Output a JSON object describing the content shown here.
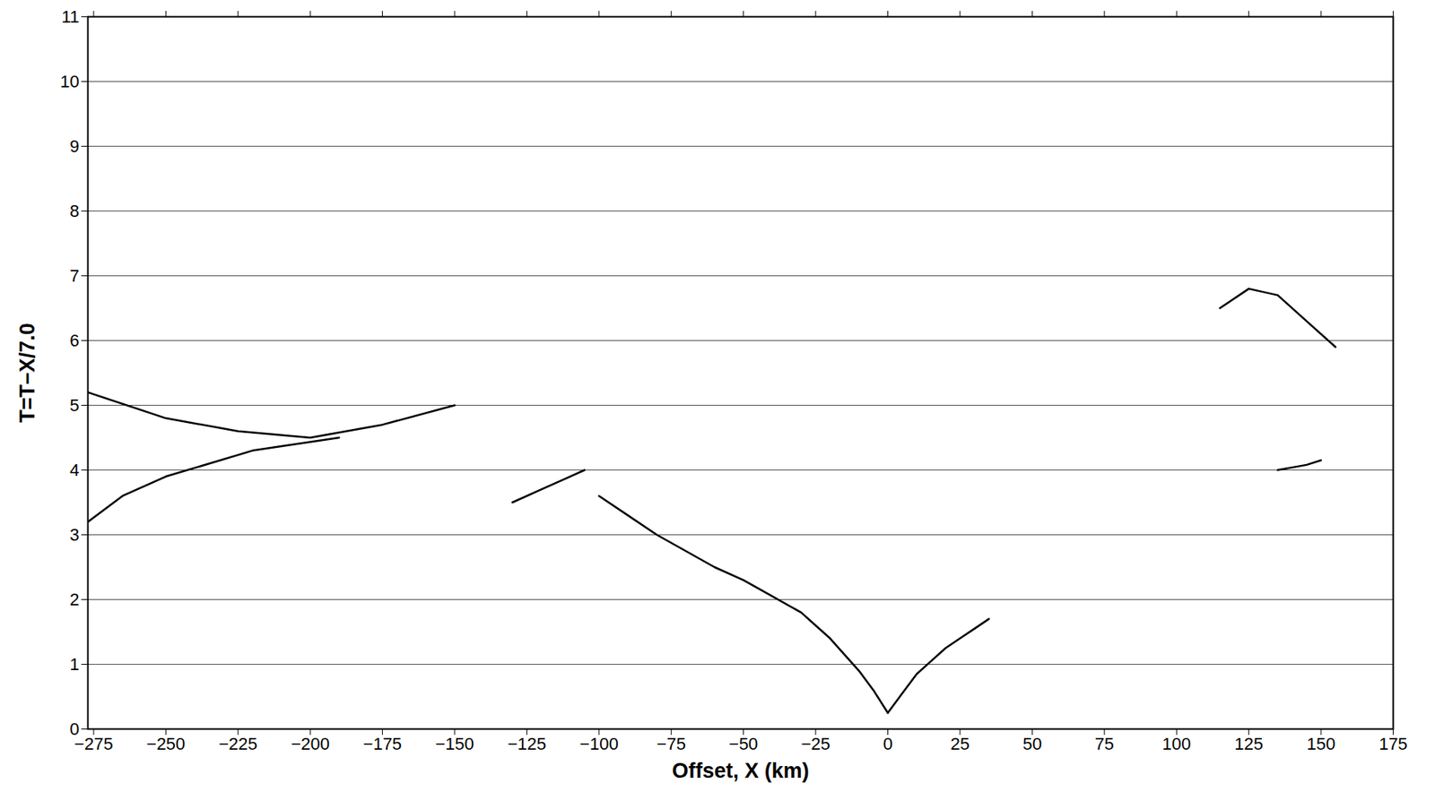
{
  "chart_data": {
    "type": "line",
    "x_label": "Offset, X (km)",
    "y_label": "T=T−X/7.0",
    "xlim": [
      -277,
      175
    ],
    "xticks": [
      -275,
      -250,
      -225,
      -200,
      -175,
      -150,
      -125,
      -100,
      -75,
      -50,
      -25,
      0,
      25,
      50,
      75,
      100,
      125,
      150,
      175
    ],
    "ylim": [
      0,
      11
    ],
    "yticks": [
      0,
      1,
      2,
      3,
      4,
      5,
      6,
      7,
      8,
      9,
      10,
      11
    ],
    "grid": true,
    "series": [
      {
        "color": "#000000",
        "x": [
          0,
          -5,
          -10,
          -15,
          -20,
          -25,
          -30,
          -40,
          -50,
          -60,
          -70,
          -80,
          -90,
          -100
        ],
        "values": [
          0.25,
          0.6,
          0.9,
          1.15,
          1.4,
          1.6,
          1.8,
          2.05,
          2.3,
          2.5,
          2.75,
          3.0,
          3.3,
          3.6
        ]
      },
      {
        "color": "#000000",
        "x": [
          0,
          5,
          10,
          15,
          20,
          25,
          30,
          35
        ],
        "values": [
          0.25,
          0.55,
          0.85,
          1.05,
          1.25,
          1.4,
          1.55,
          1.7
        ]
      },
      {
        "color": "#000000",
        "x": [
          -277,
          -265,
          -250,
          -235,
          -220,
          -205,
          -190
        ],
        "values": [
          3.2,
          3.6,
          3.9,
          4.1,
          4.3,
          4.4,
          4.5
        ]
      },
      {
        "color": "#000000",
        "x": [
          -277,
          -250,
          -225,
          -200,
          -175,
          -150
        ],
        "values": [
          5.2,
          4.8,
          4.6,
          4.5,
          4.7,
          5.0
        ]
      },
      {
        "color": "#000000",
        "x": [
          -130,
          -120,
          -110,
          -105
        ],
        "values": [
          3.5,
          3.7,
          3.9,
          4.0
        ]
      },
      {
        "color": "#000000",
        "x": [
          135,
          145,
          150
        ],
        "values": [
          4.0,
          4.08,
          4.15
        ]
      },
      {
        "color": "#000000",
        "x": [
          115,
          125,
          135,
          145,
          155
        ],
        "values": [
          6.5,
          6.8,
          6.7,
          6.3,
          5.9
        ]
      }
    ]
  }
}
